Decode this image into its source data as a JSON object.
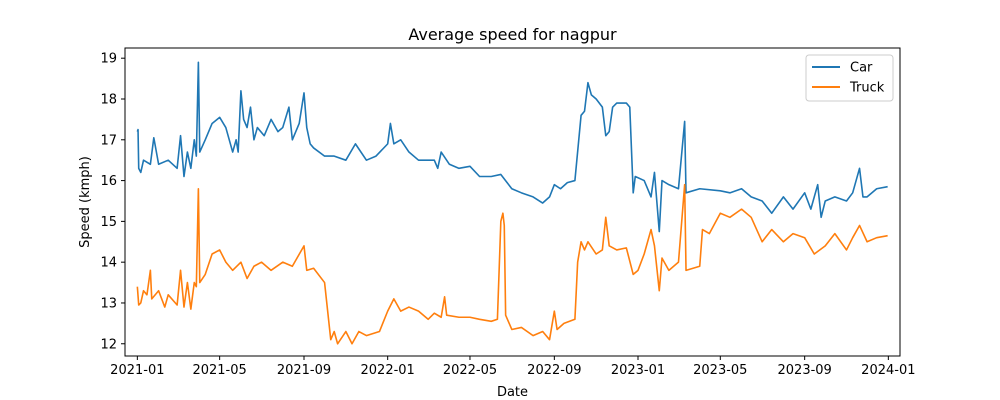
{
  "chart_data": {
    "type": "line",
    "title": "Average speed for nagpur",
    "xlabel": "Date",
    "ylabel": "Speed (kmph)",
    "xlim": [
      "2020-12-14",
      "2024-01-18"
    ],
    "ylim": [
      11.7,
      19.25
    ],
    "x_ticks": [
      "2021-01",
      "2021-05",
      "2021-09",
      "2022-01",
      "2022-05",
      "2022-09",
      "2023-01",
      "2023-05",
      "2023-09",
      "2024-01"
    ],
    "y_ticks": [
      "12",
      "13",
      "14",
      "15",
      "16",
      "17",
      "18",
      "19"
    ],
    "grid": false,
    "legend_position": "top-right",
    "series": [
      {
        "name": "Car",
        "color": "#1f77b4",
        "points": [
          [
            "2021-01-01",
            17.2
          ],
          [
            "2021-01-02",
            17.25
          ],
          [
            "2021-01-03",
            16.3
          ],
          [
            "2021-01-06",
            16.2
          ],
          [
            "2021-01-10",
            16.5
          ],
          [
            "2021-01-20",
            16.4
          ],
          [
            "2021-01-25",
            17.05
          ],
          [
            "2021-02-01",
            16.4
          ],
          [
            "2021-02-15",
            16.5
          ],
          [
            "2021-02-28",
            16.3
          ],
          [
            "2021-03-05",
            17.1
          ],
          [
            "2021-03-10",
            16.1
          ],
          [
            "2021-03-15",
            16.7
          ],
          [
            "2021-03-20",
            16.3
          ],
          [
            "2021-03-25",
            17.0
          ],
          [
            "2021-03-28",
            16.6
          ],
          [
            "2021-03-31",
            18.9
          ],
          [
            "2021-04-02",
            16.7
          ],
          [
            "2021-04-10",
            17.0
          ],
          [
            "2021-04-20",
            17.4
          ],
          [
            "2021-05-01",
            17.55
          ],
          [
            "2021-05-10",
            17.3
          ],
          [
            "2021-05-15",
            17.0
          ],
          [
            "2021-05-20",
            16.7
          ],
          [
            "2021-05-25",
            17.0
          ],
          [
            "2021-05-28",
            16.7
          ],
          [
            "2021-06-01",
            18.2
          ],
          [
            "2021-06-05",
            17.5
          ],
          [
            "2021-06-10",
            17.3
          ],
          [
            "2021-06-15",
            17.8
          ],
          [
            "2021-06-20",
            17.0
          ],
          [
            "2021-06-25",
            17.3
          ],
          [
            "2021-07-05",
            17.1
          ],
          [
            "2021-07-15",
            17.5
          ],
          [
            "2021-07-25",
            17.2
          ],
          [
            "2021-08-01",
            17.3
          ],
          [
            "2021-08-10",
            17.8
          ],
          [
            "2021-08-15",
            17.0
          ],
          [
            "2021-08-25",
            17.4
          ],
          [
            "2021-09-01",
            18.15
          ],
          [
            "2021-09-05",
            17.3
          ],
          [
            "2021-09-10",
            16.9
          ],
          [
            "2021-09-15",
            16.8
          ],
          [
            "2021-10-01",
            16.6
          ],
          [
            "2021-10-15",
            16.6
          ],
          [
            "2021-11-01",
            16.5
          ],
          [
            "2021-11-15",
            16.9
          ],
          [
            "2021-12-01",
            16.5
          ],
          [
            "2021-12-15",
            16.6
          ],
          [
            "2022-01-01",
            16.9
          ],
          [
            "2022-01-05",
            17.4
          ],
          [
            "2022-01-10",
            16.9
          ],
          [
            "2022-01-20",
            17.0
          ],
          [
            "2022-02-01",
            16.7
          ],
          [
            "2022-02-15",
            16.5
          ],
          [
            "2022-03-01",
            16.5
          ],
          [
            "2022-03-10",
            16.5
          ],
          [
            "2022-03-15",
            16.3
          ],
          [
            "2022-03-20",
            16.7
          ],
          [
            "2022-04-01",
            16.4
          ],
          [
            "2022-04-15",
            16.3
          ],
          [
            "2022-05-01",
            16.35
          ],
          [
            "2022-05-15",
            16.1
          ],
          [
            "2022-06-01",
            16.1
          ],
          [
            "2022-06-15",
            16.15
          ],
          [
            "2022-07-01",
            15.8
          ],
          [
            "2022-07-15",
            15.7
          ],
          [
            "2022-08-01",
            15.6
          ],
          [
            "2022-08-15",
            15.45
          ],
          [
            "2022-08-25",
            15.6
          ],
          [
            "2022-09-01",
            15.9
          ],
          [
            "2022-09-10",
            15.8
          ],
          [
            "2022-09-20",
            15.95
          ],
          [
            "2022-10-01",
            16.0
          ],
          [
            "2022-10-10",
            17.6
          ],
          [
            "2022-10-15",
            17.7
          ],
          [
            "2022-10-20",
            18.4
          ],
          [
            "2022-10-25",
            18.1
          ],
          [
            "2022-11-01",
            18.0
          ],
          [
            "2022-11-10",
            17.8
          ],
          [
            "2022-11-15",
            17.1
          ],
          [
            "2022-11-20",
            17.2
          ],
          [
            "2022-11-25",
            17.8
          ],
          [
            "2022-12-01",
            17.9
          ],
          [
            "2022-12-15",
            17.9
          ],
          [
            "2022-12-20",
            17.8
          ],
          [
            "2022-12-25",
            15.7
          ],
          [
            "2022-12-28",
            16.1
          ],
          [
            "2023-01-10",
            16.0
          ],
          [
            "2023-01-20",
            15.6
          ],
          [
            "2023-01-25",
            16.2
          ],
          [
            "2023-02-01",
            14.75
          ],
          [
            "2023-02-05",
            16.0
          ],
          [
            "2023-02-15",
            15.9
          ],
          [
            "2023-03-01",
            15.8
          ],
          [
            "2023-03-10",
            17.45
          ],
          [
            "2023-03-12",
            15.7
          ],
          [
            "2023-04-01",
            15.8
          ],
          [
            "2023-05-01",
            15.75
          ],
          [
            "2023-05-15",
            15.7
          ],
          [
            "2023-06-01",
            15.8
          ],
          [
            "2023-06-15",
            15.6
          ],
          [
            "2023-07-01",
            15.5
          ],
          [
            "2023-07-15",
            15.2
          ],
          [
            "2023-08-01",
            15.6
          ],
          [
            "2023-08-15",
            15.3
          ],
          [
            "2023-09-01",
            15.7
          ],
          [
            "2023-09-10",
            15.3
          ],
          [
            "2023-09-20",
            15.9
          ],
          [
            "2023-09-25",
            15.1
          ],
          [
            "2023-10-01",
            15.5
          ],
          [
            "2023-10-15",
            15.6
          ],
          [
            "2023-11-01",
            15.5
          ],
          [
            "2023-11-10",
            15.7
          ],
          [
            "2023-11-20",
            16.3
          ],
          [
            "2023-11-25",
            15.6
          ],
          [
            "2023-12-01",
            15.6
          ],
          [
            "2023-12-15",
            15.8
          ],
          [
            "2023-12-31",
            15.85
          ]
        ]
      },
      {
        "name": "Truck",
        "color": "#ff7f0e",
        "points": [
          [
            "2021-01-01",
            13.4
          ],
          [
            "2021-01-03",
            12.95
          ],
          [
            "2021-01-06",
            13.0
          ],
          [
            "2021-01-10",
            13.3
          ],
          [
            "2021-01-15",
            13.2
          ],
          [
            "2021-01-20",
            13.8
          ],
          [
            "2021-01-22",
            13.1
          ],
          [
            "2021-02-01",
            13.3
          ],
          [
            "2021-02-10",
            12.9
          ],
          [
            "2021-02-15",
            13.2
          ],
          [
            "2021-02-28",
            12.95
          ],
          [
            "2021-03-05",
            13.8
          ],
          [
            "2021-03-10",
            12.9
          ],
          [
            "2021-03-15",
            13.5
          ],
          [
            "2021-03-20",
            12.85
          ],
          [
            "2021-03-25",
            13.5
          ],
          [
            "2021-03-28",
            13.4
          ],
          [
            "2021-03-31",
            15.8
          ],
          [
            "2021-04-02",
            13.5
          ],
          [
            "2021-04-10",
            13.7
          ],
          [
            "2021-04-20",
            14.2
          ],
          [
            "2021-05-01",
            14.3
          ],
          [
            "2021-05-10",
            14.0
          ],
          [
            "2021-05-20",
            13.8
          ],
          [
            "2021-06-01",
            14.0
          ],
          [
            "2021-06-10",
            13.6
          ],
          [
            "2021-06-20",
            13.9
          ],
          [
            "2021-07-01",
            14.0
          ],
          [
            "2021-07-15",
            13.8
          ],
          [
            "2021-08-01",
            14.0
          ],
          [
            "2021-08-15",
            13.9
          ],
          [
            "2021-09-01",
            14.4
          ],
          [
            "2021-09-05",
            13.8
          ],
          [
            "2021-09-15",
            13.85
          ],
          [
            "2021-10-01",
            13.5
          ],
          [
            "2021-10-10",
            12.1
          ],
          [
            "2021-10-15",
            12.3
          ],
          [
            "2021-10-20",
            12.0
          ],
          [
            "2021-11-01",
            12.3
          ],
          [
            "2021-11-10",
            12.0
          ],
          [
            "2021-11-20",
            12.3
          ],
          [
            "2021-12-01",
            12.2
          ],
          [
            "2021-12-20",
            12.3
          ],
          [
            "2022-01-01",
            12.8
          ],
          [
            "2022-01-10",
            13.1
          ],
          [
            "2022-01-20",
            12.8
          ],
          [
            "2022-02-01",
            12.9
          ],
          [
            "2022-02-15",
            12.8
          ],
          [
            "2022-03-01",
            12.6
          ],
          [
            "2022-03-10",
            12.75
          ],
          [
            "2022-03-20",
            12.65
          ],
          [
            "2022-03-25",
            13.15
          ],
          [
            "2022-03-28",
            12.7
          ],
          [
            "2022-04-15",
            12.65
          ],
          [
            "2022-05-01",
            12.65
          ],
          [
            "2022-05-15",
            12.6
          ],
          [
            "2022-06-01",
            12.55
          ],
          [
            "2022-06-10",
            12.6
          ],
          [
            "2022-06-15",
            15.0
          ],
          [
            "2022-06-18",
            15.2
          ],
          [
            "2022-06-20",
            14.9
          ],
          [
            "2022-06-22",
            12.7
          ],
          [
            "2022-07-01",
            12.35
          ],
          [
            "2022-07-15",
            12.4
          ],
          [
            "2022-08-01",
            12.2
          ],
          [
            "2022-08-15",
            12.3
          ],
          [
            "2022-08-25",
            12.1
          ],
          [
            "2022-09-01",
            12.8
          ],
          [
            "2022-09-05",
            12.35
          ],
          [
            "2022-09-15",
            12.5
          ],
          [
            "2022-10-01",
            12.6
          ],
          [
            "2022-10-05",
            14.0
          ],
          [
            "2022-10-10",
            14.5
          ],
          [
            "2022-10-15",
            14.3
          ],
          [
            "2022-10-20",
            14.5
          ],
          [
            "2022-11-01",
            14.2
          ],
          [
            "2022-11-10",
            14.3
          ],
          [
            "2022-11-15",
            15.1
          ],
          [
            "2022-11-20",
            14.4
          ],
          [
            "2022-12-01",
            14.3
          ],
          [
            "2022-12-15",
            14.35
          ],
          [
            "2022-12-25",
            13.7
          ],
          [
            "2023-01-01",
            13.8
          ],
          [
            "2023-01-10",
            14.2
          ],
          [
            "2023-01-20",
            14.8
          ],
          [
            "2023-01-25",
            14.4
          ],
          [
            "2023-02-01",
            13.3
          ],
          [
            "2023-02-05",
            14.1
          ],
          [
            "2023-02-15",
            13.8
          ],
          [
            "2023-03-01",
            14.0
          ],
          [
            "2023-03-10",
            15.9
          ],
          [
            "2023-03-12",
            13.8
          ],
          [
            "2023-04-01",
            13.9
          ],
          [
            "2023-04-05",
            14.8
          ],
          [
            "2023-04-15",
            14.7
          ],
          [
            "2023-05-01",
            15.2
          ],
          [
            "2023-05-15",
            15.1
          ],
          [
            "2023-06-01",
            15.3
          ],
          [
            "2023-06-15",
            15.1
          ],
          [
            "2023-07-01",
            14.5
          ],
          [
            "2023-07-15",
            14.8
          ],
          [
            "2023-08-01",
            14.5
          ],
          [
            "2023-08-15",
            14.7
          ],
          [
            "2023-09-01",
            14.6
          ],
          [
            "2023-09-15",
            14.2
          ],
          [
            "2023-10-01",
            14.4
          ],
          [
            "2023-10-15",
            14.7
          ],
          [
            "2023-11-01",
            14.3
          ],
          [
            "2023-11-10",
            14.6
          ],
          [
            "2023-11-20",
            14.9
          ],
          [
            "2023-12-01",
            14.5
          ],
          [
            "2023-12-15",
            14.6
          ],
          [
            "2023-12-31",
            14.65
          ]
        ]
      }
    ]
  }
}
